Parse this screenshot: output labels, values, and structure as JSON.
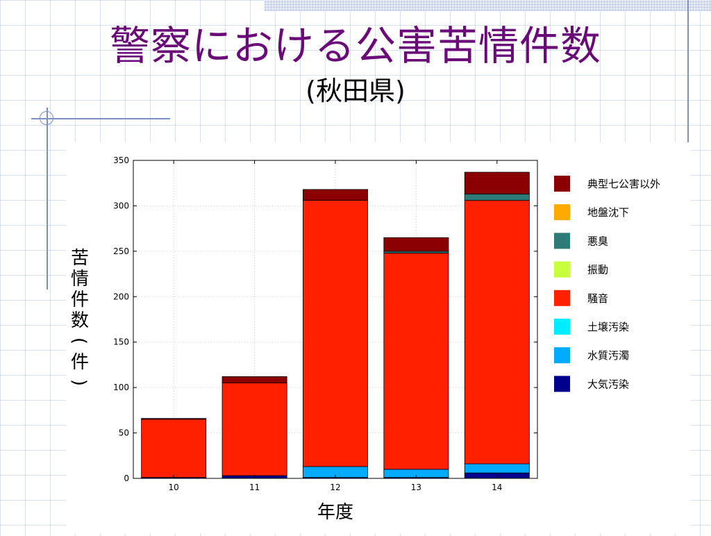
{
  "slide": {
    "title": "警察における公害苦情件数",
    "subtitle": "(秋田県)"
  },
  "colors": {
    "title": "#6a0a78",
    "background_grid": "#aab9d7",
    "decoration": "#7b8fc4"
  },
  "chart_data": {
    "type": "bar",
    "stacked": true,
    "title": "",
    "xlabel": "年度",
    "ylabel": "苦情件数(件)",
    "categories": [
      "10",
      "11",
      "12",
      "13",
      "14"
    ],
    "ylim": [
      0,
      350
    ],
    "yticks": [
      0,
      50,
      100,
      150,
      200,
      250,
      300,
      350
    ],
    "grid": true,
    "legend_position": "right",
    "series": [
      {
        "name": "大気汚染",
        "color": "#00008c",
        "values": [
          1,
          3,
          1,
          1,
          6
        ]
      },
      {
        "name": "水質汚濁",
        "color": "#00aaff",
        "values": [
          0,
          0,
          12,
          9,
          10
        ]
      },
      {
        "name": "土壌汚染",
        "color": "#00eeff",
        "values": [
          0,
          0,
          0,
          0,
          0
        ]
      },
      {
        "name": "騒音",
        "color": "#ff2000",
        "values": [
          64,
          102,
          293,
          238,
          290
        ]
      },
      {
        "name": "振動",
        "color": "#c8ff3c",
        "values": [
          0,
          0,
          0,
          0,
          0
        ]
      },
      {
        "name": "悪臭",
        "color": "#2e7a78",
        "values": [
          0,
          0,
          0,
          2,
          7
        ]
      },
      {
        "name": "地盤沈下",
        "color": "#ffaa00",
        "values": [
          0,
          0,
          0,
          0,
          0
        ]
      },
      {
        "name": "典型七公害以外",
        "color": "#8b0000",
        "values": [
          1,
          7,
          12,
          15,
          24
        ]
      }
    ],
    "legend_order": [
      "典型七公害以外",
      "地盤沈下",
      "悪臭",
      "振動",
      "騒音",
      "土壌汚染",
      "水質汚濁",
      "大気汚染"
    ]
  }
}
